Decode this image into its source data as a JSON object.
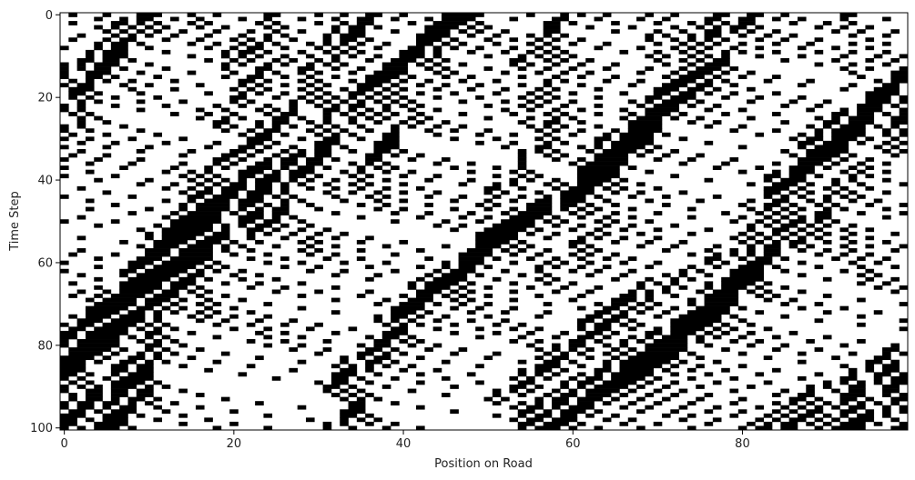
{
  "chart_data": {
    "type": "heatmap",
    "title": "",
    "xlabel": "Position on Road",
    "ylabel": "Time Step",
    "colormap": {
      "occupied": "#000000",
      "empty": "#ffffff"
    },
    "xlim": [
      0,
      99
    ],
    "ylim": [
      0,
      100
    ],
    "y_inverted": true,
    "x_ticks": [
      0,
      20,
      40,
      60,
      80
    ],
    "y_ticks": [
      0,
      20,
      40,
      60,
      80,
      100
    ],
    "grid": false,
    "legend": "none",
    "cells": "binary occupancy matrix: 101 time steps (rows) x 100 road positions (columns); black = vehicle present, white = empty"
  }
}
